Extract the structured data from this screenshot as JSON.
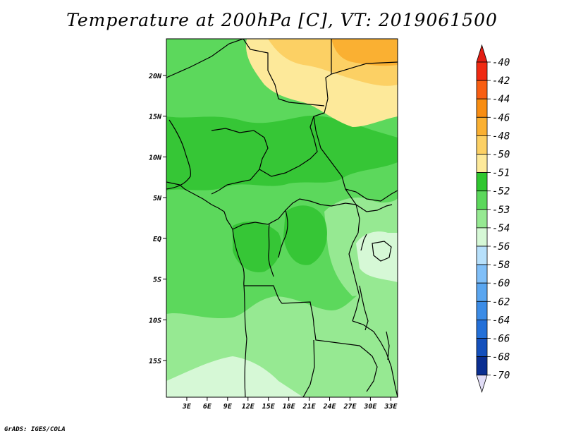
{
  "title": "Temperature at 200hPa [C], VT: 2019061500",
  "credit": "GrADS: IGES/COLA",
  "map": {
    "lon_range": [
      0,
      34
    ],
    "lat_range": [
      -19.5,
      24.5
    ],
    "lat_ticks": [
      {
        "value": 20,
        "label": "20N"
      },
      {
        "value": 15,
        "label": "15N"
      },
      {
        "value": 10,
        "label": "10N"
      },
      {
        "value": 5,
        "label": "5N"
      },
      {
        "value": 0,
        "label": "EQ"
      },
      {
        "value": -5,
        "label": "5S"
      },
      {
        "value": -10,
        "label": "10S"
      },
      {
        "value": -15,
        "label": "15S"
      }
    ],
    "lon_ticks": [
      {
        "value": 3,
        "label": "3E"
      },
      {
        "value": 6,
        "label": "6E"
      },
      {
        "value": 9,
        "label": "9E"
      },
      {
        "value": 12,
        "label": "12E"
      },
      {
        "value": 15,
        "label": "15E"
      },
      {
        "value": 18,
        "label": "18E"
      },
      {
        "value": 21,
        "label": "21E"
      },
      {
        "value": 24,
        "label": "24E"
      },
      {
        "value": 27,
        "label": "27E"
      },
      {
        "value": 30,
        "label": "30E"
      },
      {
        "value": 33,
        "label": "33E"
      }
    ]
  },
  "colorbar": {
    "labels": [
      "-40",
      "-42",
      "-44",
      "-46",
      "-48",
      "-50",
      "-51",
      "-52",
      "-53",
      "-54",
      "-56",
      "-58",
      "-60",
      "-62",
      "-64",
      "-66",
      "-68",
      "-70"
    ],
    "colors": [
      "#f02a12",
      "#f85e12",
      "#f88d12",
      "#fab032",
      "#fcd064",
      "#fde99a",
      "#2fc62f",
      "#5cd85c",
      "#96e992",
      "#d6f8d6",
      "#b7e0fb",
      "#80bff8",
      "#5aa6f0",
      "#3c8ce6",
      "#2470d8",
      "#1450bc",
      "#0a2e90",
      "#060a60"
    ],
    "top_color": "#e31d13",
    "bottom_color": "#e0dcf6"
  },
  "field_colors": {
    "c53": "#5cd85c",
    "c54": "#96e992",
    "c52": "#36c636",
    "c56": "#d6f8d6",
    "c50": "#fde99a",
    "c48": "#fcd064",
    "c46": "#fab032"
  }
}
